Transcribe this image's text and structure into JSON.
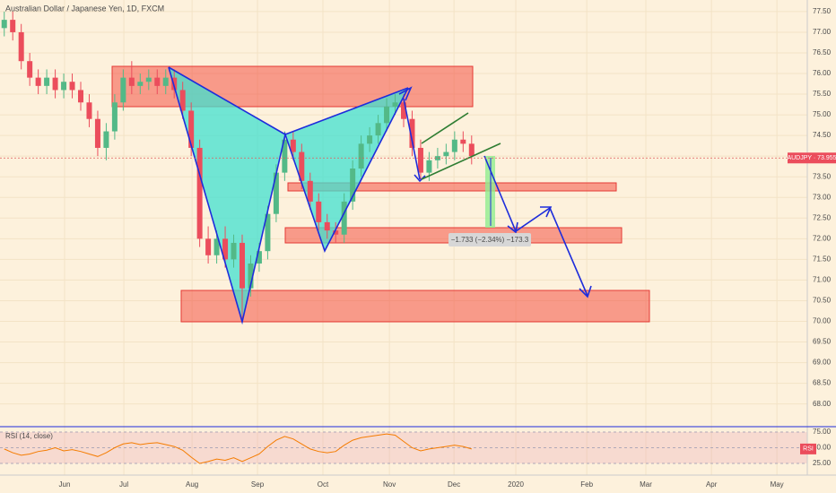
{
  "chart_data": [
    {
      "type": "candlestick",
      "title": "Australian Dollar / Japanese Yen, 1D, FXCM",
      "x": [
        2,
        6,
        10,
        14,
        18,
        22,
        26,
        30,
        34,
        38,
        42,
        46,
        50,
        54,
        58,
        62,
        66,
        70,
        74,
        78,
        82,
        86,
        90,
        94,
        98,
        102,
        106,
        110,
        114,
        118,
        122,
        126,
        130,
        134,
        138,
        142,
        146,
        150,
        154,
        158,
        162,
        166,
        170,
        174,
        178,
        182,
        186,
        190,
        194,
        198,
        202,
        206,
        210,
        214,
        218,
        222
      ],
      "open": [
        77.1,
        77.3,
        77.0,
        76.3,
        75.9,
        75.7,
        75.9,
        75.6,
        75.8,
        75.6,
        75.3,
        74.9,
        74.2,
        74.6,
        75.3,
        75.9,
        75.7,
        75.8,
        75.9,
        75.7,
        75.9,
        75.6,
        75.1,
        74.2,
        72.0,
        71.6,
        72.0,
        71.5,
        71.9,
        70.8,
        71.4,
        71.7,
        72.6,
        73.6,
        74.4,
        74.1,
        73.4,
        72.9,
        72.4,
        72.2,
        72.1,
        72.9,
        73.7,
        74.3,
        74.5,
        74.8,
        75.2,
        75.3,
        74.9,
        74.2,
        73.6,
        73.9,
        74.0,
        74.1,
        74.4,
        74.3
      ],
      "high": [
        77.5,
        77.5,
        77.2,
        76.5,
        76.1,
        76.1,
        76.1,
        76.0,
        76.0,
        75.8,
        75.5,
        75.1,
        74.8,
        75.5,
        76.1,
        76.3,
        76.0,
        76.1,
        76.1,
        76.1,
        76.1,
        75.8,
        75.3,
        74.4,
        72.3,
        72.2,
        72.3,
        72.1,
        72.1,
        71.6,
        71.9,
        72.8,
        73.8,
        74.6,
        74.6,
        74.3,
        73.6,
        73.1,
        72.6,
        72.4,
        73.1,
        73.9,
        74.5,
        74.7,
        75.0,
        75.4,
        75.5,
        75.5,
        75.1,
        74.4,
        74.1,
        74.2,
        74.3,
        74.6,
        74.6,
        74.5
      ],
      "low": [
        76.9,
        76.8,
        76.1,
        75.7,
        75.5,
        75.5,
        75.4,
        75.4,
        75.4,
        75.1,
        74.7,
        74.0,
        73.9,
        74.4,
        75.1,
        75.5,
        75.5,
        75.6,
        75.5,
        75.5,
        75.4,
        74.9,
        74.0,
        71.8,
        71.4,
        71.4,
        71.3,
        71.3,
        70.0,
        70.6,
        71.2,
        71.5,
        72.4,
        73.4,
        73.9,
        73.2,
        72.7,
        72.2,
        72.0,
        71.9,
        71.9,
        72.7,
        73.5,
        74.1,
        74.3,
        74.6,
        75.0,
        74.7,
        74.0,
        73.4,
        73.4,
        73.7,
        73.8,
        73.9,
        74.1,
        73.8
      ],
      "close": [
        77.3,
        77.0,
        76.3,
        75.9,
        75.7,
        75.9,
        75.6,
        75.8,
        75.6,
        75.3,
        74.9,
        74.2,
        74.6,
        75.3,
        75.9,
        75.7,
        75.8,
        75.9,
        75.7,
        75.9,
        75.6,
        75.1,
        74.2,
        72.0,
        71.6,
        72.0,
        71.5,
        71.9,
        70.8,
        71.4,
        71.7,
        72.6,
        73.6,
        74.4,
        74.1,
        73.4,
        72.9,
        72.4,
        72.2,
        72.1,
        72.9,
        73.7,
        74.3,
        74.5,
        74.8,
        75.2,
        75.3,
        74.9,
        74.2,
        73.6,
        73.9,
        74.0,
        74.1,
        74.4,
        74.3,
        74.0
      ],
      "up_color": "#53b987",
      "down_color": "#eb4d5c",
      "xlim": [
        0,
        380
      ],
      "ylim": [
        67.45,
        77.78
      ],
      "xticks": [
        {
          "value": 30.4,
          "label": "Jun"
        },
        {
          "value": 58.3,
          "label": "Jul"
        },
        {
          "value": 90.4,
          "label": "Aug"
        },
        {
          "value": 121.2,
          "label": "Sep"
        },
        {
          "value": 152,
          "label": "Oct"
        },
        {
          "value": 183.3,
          "label": "Nov"
        },
        {
          "value": 213.7,
          "label": "Dec"
        },
        {
          "value": 242.8,
          "label": "2020"
        },
        {
          "value": 276.2,
          "label": "Feb"
        },
        {
          "value": 304,
          "label": "Mar"
        },
        {
          "value": 334.9,
          "label": "Apr"
        },
        {
          "value": 365.7,
          "label": "May"
        }
      ],
      "yticks": [
        {
          "value": 77.5,
          "label": "77.50"
        },
        {
          "value": 77,
          "label": "77.00"
        },
        {
          "value": 76.5,
          "label": "76.50"
        },
        {
          "value": 76,
          "label": "76.00"
        },
        {
          "value": 75.5,
          "label": "75.50"
        },
        {
          "value": 75,
          "label": "75.00"
        },
        {
          "value": 74.5,
          "label": "74.50"
        },
        {
          "value": 74,
          "label": "74.00"
        },
        {
          "value": 73.5,
          "label": "73.50"
        },
        {
          "value": 73,
          "label": "73.00"
        },
        {
          "value": 72.5,
          "label": "72.50"
        },
        {
          "value": 72,
          "label": "72.00"
        },
        {
          "value": 71.5,
          "label": "71.50"
        },
        {
          "value": 71,
          "label": "71.00"
        },
        {
          "value": 70.5,
          "label": "70.50"
        },
        {
          "value": 70,
          "label": "70.00"
        },
        {
          "value": 69.5,
          "label": "69.50"
        },
        {
          "value": 69,
          "label": "69.00"
        },
        {
          "value": 68.5,
          "label": "68.50"
        },
        {
          "value": 68,
          "label": "68.00"
        }
      ],
      "last_price": {
        "value": 73.955,
        "label": "AUDJPY · 73.955"
      },
      "annotations": [
        "−1.733 (−2.34%) −173.3"
      ]
    },
    {
      "type": "line",
      "title": "RSI (14, close)",
      "color": "#f57c00",
      "x": [
        2,
        6,
        10,
        14,
        18,
        22,
        26,
        30,
        34,
        38,
        42,
        46,
        50,
        54,
        58,
        62,
        66,
        70,
        74,
        78,
        82,
        86,
        90,
        94,
        98,
        102,
        106,
        110,
        114,
        118,
        122,
        126,
        130,
        134,
        138,
        142,
        146,
        150,
        154,
        158,
        162,
        166,
        170,
        174,
        178,
        182,
        186,
        190,
        194,
        198,
        202,
        206,
        210,
        214,
        218,
        222
      ],
      "values": [
        48,
        42,
        38,
        40,
        44,
        46,
        50,
        45,
        47,
        44,
        40,
        36,
        42,
        50,
        56,
        58,
        55,
        57,
        58,
        55,
        52,
        46,
        35,
        25,
        28,
        32,
        30,
        34,
        28,
        34,
        40,
        52,
        62,
        68,
        64,
        56,
        48,
        44,
        42,
        44,
        54,
        62,
        66,
        68,
        70,
        72,
        70,
        60,
        50,
        45,
        48,
        50,
        52,
        54,
        52,
        48
      ],
      "xlim": [
        0,
        380
      ],
      "ylim": [
        6.4,
        80.7
      ],
      "yticks": [
        {
          "value": 75,
          "label": "75.00"
        },
        {
          "value": 50,
          "label": "50.00"
        },
        {
          "value": 25,
          "label": "25.00"
        }
      ],
      "last_label": "RSI"
    }
  ]
}
